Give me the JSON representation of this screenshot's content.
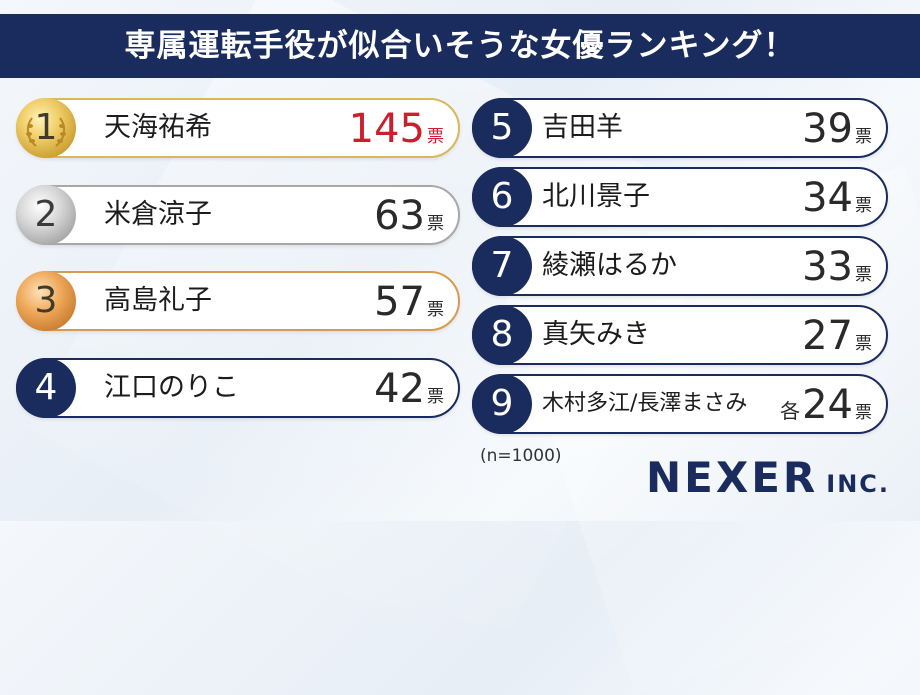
{
  "title": "専属運転手役が似合いそうな女優ランキング！",
  "sample_note": "(n=1000)",
  "logo": {
    "main": "NEXER",
    "inc": "INC."
  },
  "colors": {
    "navy": "#1a2b5e",
    "top_votes": "#cc1f2e",
    "gold": "#d8b85a",
    "silver": "#a8a8a8",
    "bronze": "#d89a4e"
  },
  "chart_data": {
    "type": "table",
    "unit": "票",
    "rows": [
      {
        "rank": "1",
        "name": "天海祐希",
        "votes": 145,
        "unit": "票"
      },
      {
        "rank": "2",
        "name": "米倉涼子",
        "votes": 63,
        "unit": "票"
      },
      {
        "rank": "3",
        "name": "高島礼子",
        "votes": 57,
        "unit": "票"
      },
      {
        "rank": "4",
        "name": "江口のりこ",
        "votes": 42,
        "unit": "票"
      },
      {
        "rank": "5",
        "name": "吉田羊",
        "votes": 39,
        "unit": "票"
      },
      {
        "rank": "6",
        "name": "北川景子",
        "votes": 34,
        "unit": "票"
      },
      {
        "rank": "7",
        "name": "綾瀬はるか",
        "votes": 33,
        "unit": "票"
      },
      {
        "rank": "8",
        "name": "真矢みき",
        "votes": 27,
        "unit": "票"
      },
      {
        "rank": "9",
        "name": "木村多江/長澤まさみ",
        "votes": 24,
        "prefix": "各",
        "unit": "票"
      }
    ]
  }
}
